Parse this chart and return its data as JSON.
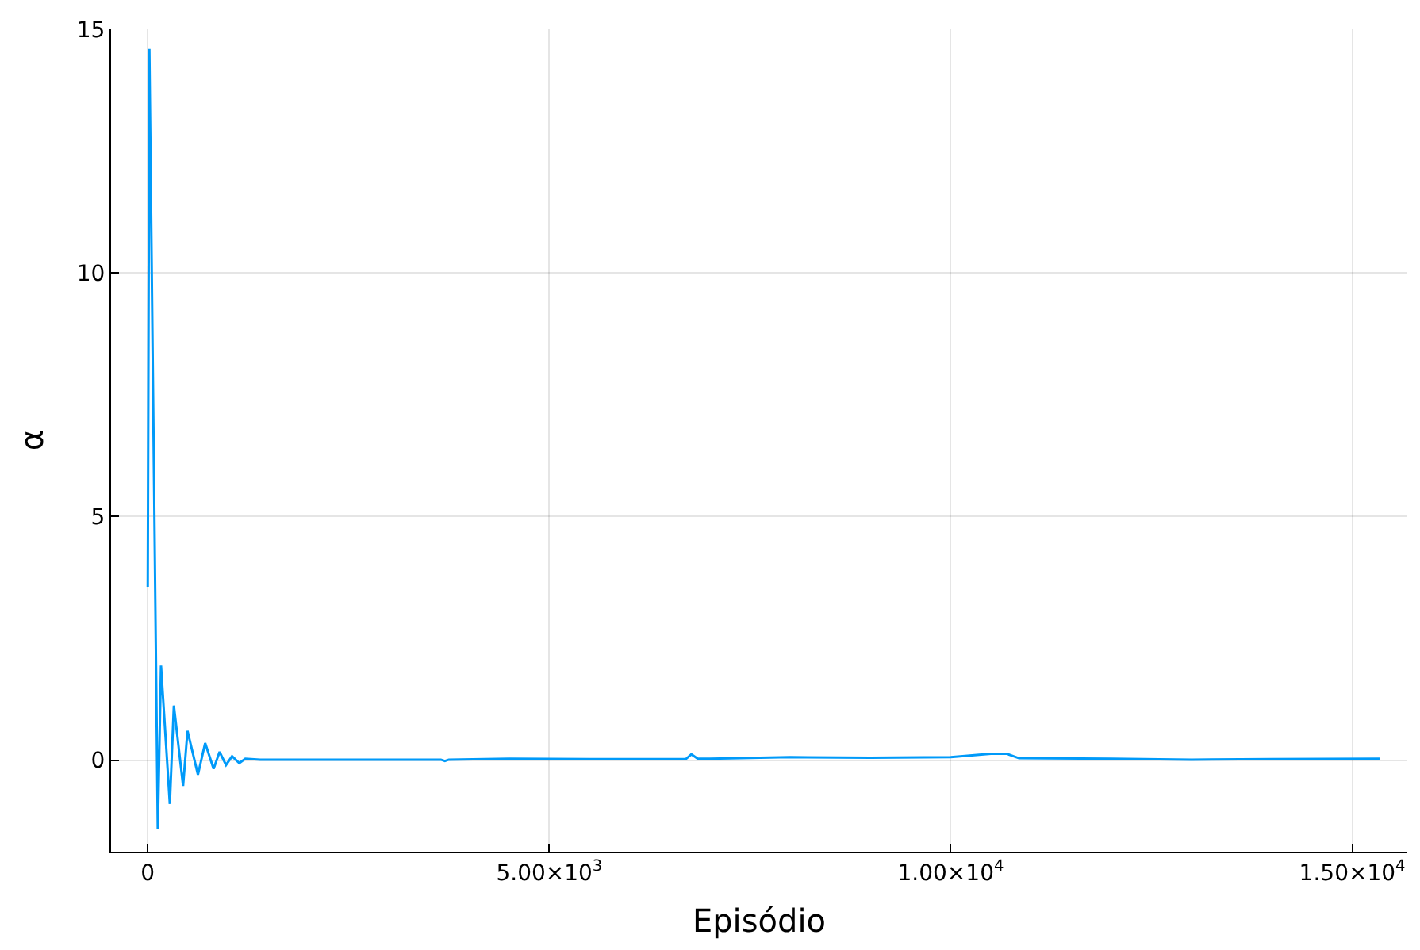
{
  "chart_data": {
    "type": "line",
    "xlabel": "Episódio",
    "ylabel": "α",
    "x": [
      0,
      20,
      125,
      165,
      275,
      325,
      440,
      495,
      625,
      715,
      820,
      895,
      975,
      1050,
      1140,
      1215,
      1400,
      2000,
      3000,
      3650,
      3700,
      3750,
      4500,
      5500,
      6500,
      6700,
      6770,
      6850,
      7000,
      8000,
      9000,
      10000,
      10500,
      10700,
      10850,
      12000,
      13000,
      14000,
      15340
    ],
    "series": [
      {
        "color": "#009af9",
        "values": [
          3.56,
          14.6,
          -1.42,
          1.94,
          -0.9,
          1.12,
          -0.53,
          0.6,
          -0.3,
          0.35,
          -0.18,
          0.17,
          -0.1,
          0.08,
          -0.06,
          0.03,
          0.01,
          0.01,
          0.01,
          0.01,
          -0.02,
          0.01,
          0.03,
          0.02,
          0.02,
          0.02,
          0.12,
          0.03,
          0.03,
          0.06,
          0.05,
          0.06,
          0.13,
          0.13,
          0.04,
          0.03,
          0.01,
          0.02,
          0.03
        ]
      }
    ],
    "xlim": [
      -457,
      15686
    ],
    "ylim": [
      -1.88,
      15.02
    ],
    "xticks": [
      0,
      {
        "value": 5000,
        "label": "5.00×10$^{3}$"
      },
      {
        "value": 10000,
        "label": "1.00×10$^{4}$"
      },
      {
        "value": 15000,
        "label": "1.50×10$^{4}$"
      }
    ],
    "yticks": [
      0,
      5,
      10,
      15
    ],
    "grid": true,
    "line_style": "solid",
    "marker": "none"
  }
}
